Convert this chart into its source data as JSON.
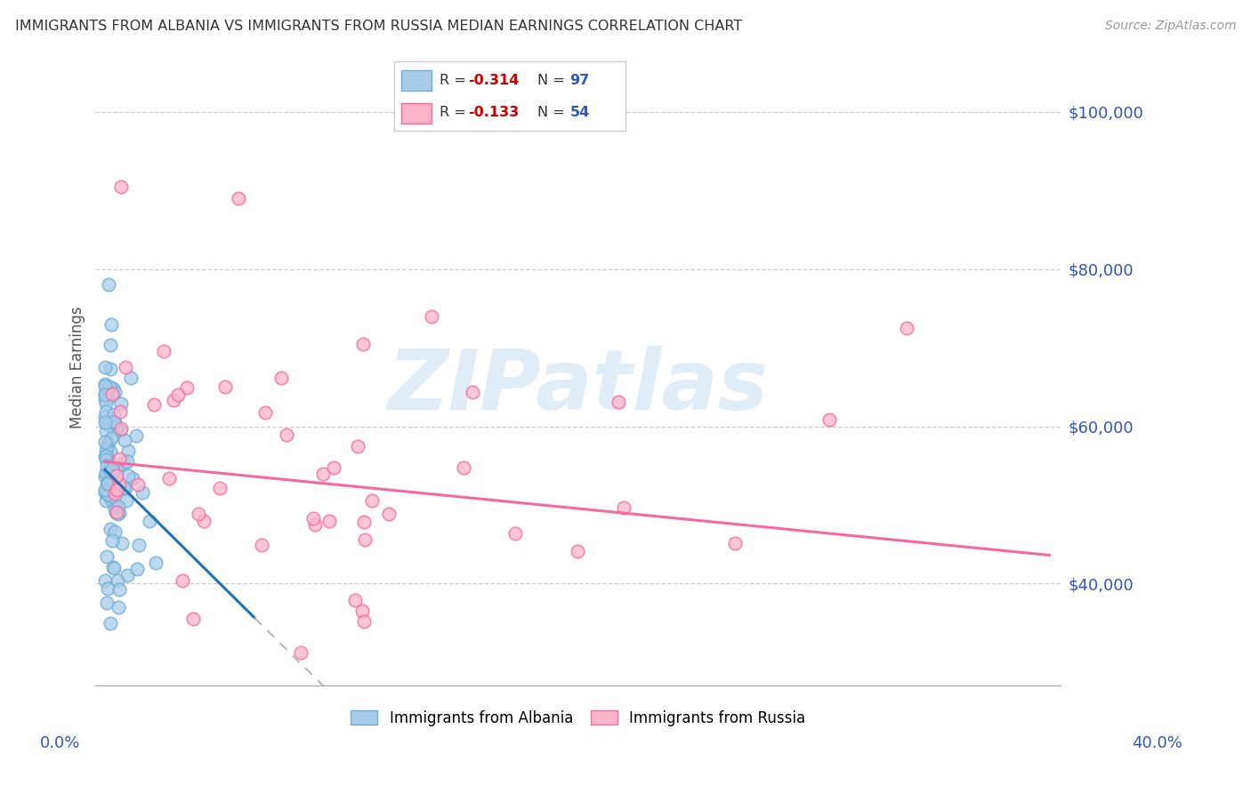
{
  "title": "IMMIGRANTS FROM ALBANIA VS IMMIGRANTS FROM RUSSIA MEDIAN EARNINGS CORRELATION CHART",
  "source": "Source: ZipAtlas.com",
  "ylabel": "Median Earnings",
  "yticks": [
    40000,
    60000,
    80000,
    100000
  ],
  "ytick_labels": [
    "$40,000",
    "$60,000",
    "$80,000",
    "$100,000"
  ],
  "ylim_min": 27000,
  "ylim_max": 108000,
  "xlim_min": -0.004,
  "xlim_max": 0.415,
  "albania_color_face": "#a8cce8",
  "albania_color_edge": "#6baed6",
  "russia_color_face": "#fbb4ca",
  "russia_color_edge": "#f768a1",
  "trend_albania_solid_color": "#2171b5",
  "trend_albania_dash_color": "#bbbbbb",
  "trend_russia_color": "#f768a1",
  "grid_color": "#cccccc",
  "watermark_text": "ZIPatlas",
  "watermark_color": "#c8dff0",
  "legend_box_color": "#cccccc",
  "r_color": "#cc0000",
  "n_color": "#3355bb",
  "title_color": "#333333",
  "source_color": "#999999",
  "ylabel_color": "#555555",
  "tick_label_color": "#3355bb",
  "bottom_legend_label1": "Immigrants from Albania",
  "bottom_legend_label2": "Immigrants from Russia",
  "n_albania": 97,
  "n_russia": 54,
  "r_albania": -0.314,
  "r_russia": -0.133,
  "albania_seed": 42,
  "russia_seed": 99,
  "scatter_size": 110,
  "scatter_alpha": 0.75
}
